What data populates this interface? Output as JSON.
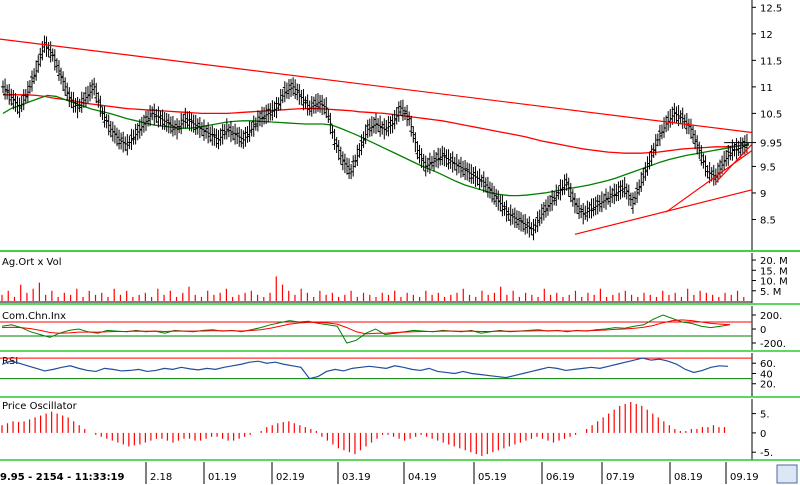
{
  "status_text": "9.95 - 2154 - 11:33:19",
  "x_axis": {
    "labels": [
      "2.18",
      "01.19",
      "02.19",
      "03.19",
      "04.19",
      "05.19",
      "06.19",
      "07.19",
      "08.19",
      "09.19"
    ]
  },
  "colors": {
    "price_bars": "#000000",
    "ma_long": "#ff0000",
    "ma_short": "#008000",
    "trendline": "#ff0000",
    "panel_separator": "#00c000",
    "volume_bars": "#ff0000",
    "rsi_line": "#1f4fa0",
    "cci_line": "#008000",
    "cci_signal": "#ff0000",
    "upper_band": "#ff0000",
    "lower_band": "#008000",
    "oscillator_bars": "#ff0000"
  },
  "chart_data": [
    {
      "type": "ohlc",
      "panel": "price",
      "y_ticks": [
        "12.5",
        "12",
        "11.5",
        "11",
        "10.5",
        "9.95",
        "9.5",
        "9",
        "8.5"
      ],
      "ylim": [
        8.0,
        12.6
      ],
      "current_value_label": "9.95",
      "close": [
        11.0,
        10.8,
        10.6,
        10.9,
        11.3,
        11.8,
        11.6,
        11.2,
        10.8,
        10.6,
        10.8,
        11.0,
        10.5,
        10.2,
        10.0,
        9.9,
        10.1,
        10.3,
        10.5,
        10.4,
        10.3,
        10.2,
        10.4,
        10.3,
        10.2,
        10.1,
        10.0,
        10.2,
        10.1,
        10.0,
        10.2,
        10.4,
        10.5,
        10.6,
        10.9,
        11.0,
        10.8,
        10.6,
        10.7,
        10.6,
        10.0,
        9.6,
        9.4,
        9.8,
        10.2,
        10.3,
        10.2,
        10.3,
        10.6,
        10.4,
        9.8,
        9.5,
        9.6,
        9.7,
        9.6,
        9.5,
        9.4,
        9.3,
        9.2,
        9.0,
        8.8,
        8.6,
        8.5,
        8.4,
        8.3,
        8.6,
        8.8,
        9.0,
        9.2,
        8.8,
        8.6,
        8.7,
        8.8,
        8.9,
        9.0,
        9.1,
        8.8,
        9.2,
        9.6,
        10.0,
        10.3,
        10.5,
        10.4,
        10.2,
        9.8,
        9.4,
        9.3,
        9.6,
        9.8,
        9.85,
        9.95
      ],
      "ma_long": [
        10.85,
        10.85,
        10.85,
        10.85,
        10.84,
        10.82,
        10.79,
        10.77,
        10.75,
        10.72,
        10.69,
        10.67,
        10.65,
        10.63,
        10.61,
        10.59,
        10.58,
        10.57,
        10.56,
        10.55,
        10.54,
        10.53,
        10.52,
        10.51,
        10.5,
        10.5,
        10.5,
        10.5,
        10.51,
        10.52,
        10.53,
        10.54,
        10.55,
        10.56,
        10.57,
        10.58,
        10.59,
        10.59,
        10.59,
        10.58,
        10.57,
        10.56,
        10.55,
        10.53,
        10.52,
        10.51,
        10.5,
        10.48,
        10.46,
        10.44,
        10.42,
        10.4,
        10.38,
        10.36,
        10.33,
        10.3,
        10.27,
        10.24,
        10.21,
        10.18,
        10.15,
        10.12,
        10.09,
        10.06,
        10.02,
        9.98,
        9.95,
        9.92,
        9.89,
        9.86,
        9.83,
        9.81,
        9.79,
        9.77,
        9.76,
        9.75,
        9.75,
        9.75,
        9.76,
        9.77,
        9.79,
        9.81,
        9.83,
        9.84,
        9.85,
        9.86,
        9.87,
        9.87,
        9.88,
        9.89,
        9.9
      ],
      "ma_short": [
        10.5,
        10.6,
        10.65,
        10.72,
        10.78,
        10.84,
        10.82,
        10.76,
        10.7,
        10.64,
        10.58,
        10.54,
        10.5,
        10.45,
        10.4,
        10.36,
        10.32,
        10.28,
        10.26,
        10.24,
        10.22,
        10.22,
        10.24,
        10.27,
        10.3,
        10.33,
        10.35,
        10.36,
        10.36,
        10.35,
        10.34,
        10.33,
        10.32,
        10.31,
        10.3,
        10.3,
        10.3,
        10.28,
        10.22,
        10.15,
        10.08,
        10.0,
        9.92,
        9.84,
        9.76,
        9.68,
        9.6,
        9.52,
        9.45,
        9.38,
        9.3,
        9.22,
        9.15,
        9.1,
        9.05,
        9.0,
        8.97,
        8.95,
        8.95,
        8.96,
        8.98,
        9.0,
        9.03,
        9.06,
        9.09,
        9.12,
        9.15,
        9.19,
        9.23,
        9.28,
        9.34,
        9.4,
        9.46,
        9.52,
        9.58,
        9.63,
        9.67,
        9.71,
        9.74,
        9.77,
        9.8,
        9.83,
        9.86,
        9.89,
        9.92
      ]
    },
    {
      "type": "bar",
      "panel": "volume",
      "title": "Ag.Ort x Vol",
      "y_ticks": [
        "20. M",
        "15. M",
        "10. M",
        "5. M"
      ],
      "ylim": [
        0,
        21
      ],
      "values": [
        3,
        5,
        2,
        8,
        4,
        6,
        9,
        3,
        5,
        2,
        4,
        3,
        6,
        2,
        5,
        3,
        4,
        2,
        6,
        3,
        5,
        2,
        3,
        4,
        2,
        6,
        3,
        5,
        2,
        4,
        7,
        3,
        2,
        5,
        3,
        4,
        6,
        2,
        3,
        4,
        5,
        3,
        2,
        4,
        12,
        8,
        5,
        3,
        6,
        4,
        2,
        5,
        3,
        4,
        2,
        3,
        5,
        2,
        4,
        3,
        2,
        4,
        3,
        5,
        2,
        4,
        3,
        2,
        5,
        3,
        4,
        2,
        3,
        4,
        6,
        3,
        2,
        5,
        3,
        4,
        7,
        3,
        5,
        2,
        4,
        3,
        2,
        6,
        3,
        4,
        2,
        3,
        5,
        2,
        4,
        3,
        6,
        2,
        3,
        4,
        5,
        3,
        2,
        4,
        3,
        2,
        5,
        3,
        4,
        2,
        6,
        3,
        5,
        4,
        3,
        2,
        4,
        3,
        5,
        2
      ]
    },
    {
      "type": "line",
      "panel": "cci",
      "title": "Com.Chn.Inx",
      "y_ticks": [
        "200.",
        "0",
        "-200."
      ],
      "ylim": [
        -300,
        300
      ],
      "upper_band": 100,
      "lower_band": -100,
      "values": [
        40,
        60,
        20,
        -40,
        -80,
        -120,
        -60,
        -20,
        0,
        -40,
        -60,
        -20,
        -30,
        -40,
        -20,
        -40,
        -30,
        -60,
        -20,
        -30,
        -40,
        -20,
        -10,
        -30,
        -20,
        -40,
        -10,
        20,
        60,
        90,
        120,
        100,
        110,
        80,
        60,
        40,
        -200,
        -160,
        -60,
        0,
        -80,
        -60,
        -40,
        -20,
        -30,
        -40,
        -20,
        -30,
        -40,
        -20,
        -60,
        -40,
        -20,
        -40,
        -30,
        -20,
        -10,
        -30,
        -20,
        -40,
        -20,
        -30,
        -10,
        0,
        20,
        10,
        40,
        60,
        140,
        200,
        150,
        100,
        80,
        40,
        20,
        40,
        60
      ],
      "signal": [
        20,
        25,
        20,
        5,
        -20,
        -50,
        -60,
        -55,
        -45,
        -45,
        -45,
        -40,
        -35,
        -35,
        -30,
        -32,
        -30,
        -35,
        -30,
        -30,
        -30,
        -28,
        -25,
        -25,
        -25,
        -28,
        -22,
        -10,
        10,
        40,
        70,
        85,
        95,
        95,
        85,
        70,
        20,
        -40,
        -70,
        -60,
        -60,
        -50,
        -45,
        -40,
        -35,
        -35,
        -30,
        -30,
        -32,
        -30,
        -35,
        -35,
        -30,
        -32,
        -30,
        -28,
        -25,
        -25,
        -25,
        -28,
        -25,
        -25,
        -22,
        -15,
        -5,
        0,
        10,
        25,
        50,
        90,
        120,
        130,
        120,
        100,
        80,
        70,
        60
      ]
    },
    {
      "type": "line",
      "panel": "rsi",
      "title": "RSI",
      "y_ticks": [
        "60.",
        "40",
        "20."
      ],
      "ylim": [
        0,
        78
      ],
      "upper_band": 70,
      "lower_band": 30,
      "values": [
        58,
        64,
        60,
        55,
        50,
        45,
        48,
        52,
        55,
        50,
        46,
        44,
        50,
        48,
        45,
        46,
        48,
        44,
        46,
        50,
        48,
        52,
        49,
        47,
        50,
        48,
        52,
        55,
        58,
        62,
        64,
        60,
        62,
        58,
        55,
        52,
        30,
        34,
        44,
        48,
        45,
        50,
        52,
        54,
        52,
        50,
        55,
        52,
        48,
        46,
        50,
        44,
        42,
        40,
        44,
        40,
        38,
        36,
        34,
        32,
        36,
        40,
        44,
        48,
        52,
        50,
        46,
        48,
        50,
        52,
        50,
        54,
        58,
        62,
        66,
        70,
        66,
        68,
        64,
        58,
        48,
        42,
        46,
        52,
        55,
        54
      ]
    },
    {
      "type": "bar",
      "panel": "price_oscillator",
      "title": "Price Oscillator",
      "y_ticks": [
        "5.",
        "0",
        "-5."
      ],
      "ylim": [
        -6.5,
        8
      ],
      "values": [
        2,
        2.5,
        3,
        2.8,
        3,
        3.5,
        4,
        4.5,
        5,
        5.5,
        5,
        4.5,
        4,
        3,
        2,
        1,
        0,
        -0.5,
        -1,
        -1.5,
        -2,
        -2.5,
        -3,
        -3.5,
        -3.2,
        -3,
        -2.5,
        -2,
        -1.5,
        -1.5,
        -2,
        -2.5,
        -2,
        -1.5,
        -1.5,
        -2,
        -2,
        -1.5,
        -1,
        -1,
        -1.5,
        -2,
        -2,
        -1.5,
        -1,
        -0.5,
        0,
        0.5,
        1.5,
        2,
        2.5,
        2.8,
        3,
        2.5,
        2,
        1.5,
        1,
        0.5,
        -1,
        -2,
        -3,
        -4,
        -4.5,
        -5,
        -5.5,
        -4.5,
        -3.5,
        -2.5,
        -1.5,
        -0.5,
        -0.5,
        -1,
        -1.5,
        -2,
        -1.5,
        -1,
        -0.5,
        -1,
        -1.5,
        -2,
        -2.5,
        -3,
        -3.5,
        -4,
        -4.5,
        -5,
        -5.5,
        -6,
        -5.5,
        -5,
        -4.5,
        -4,
        -3.5,
        -3,
        -2.5,
        -2,
        -1.5,
        -1,
        -1.5,
        -2,
        -2.5,
        -2,
        -1.5,
        -1,
        -0.5,
        0,
        1,
        2,
        3,
        4,
        5,
        6,
        7,
        7.5,
        8,
        7.5,
        7,
        6,
        5,
        4,
        3,
        2,
        1,
        0.5,
        0.5,
        1,
        1,
        1.5,
        1.5,
        2,
        1.5,
        1.5
      ]
    }
  ]
}
